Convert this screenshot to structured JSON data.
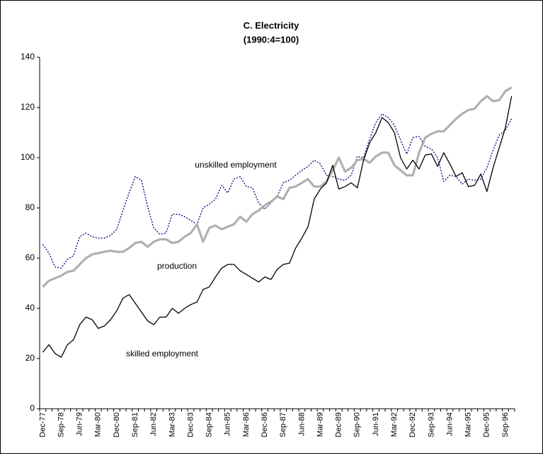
{
  "chart_data": {
    "type": "line",
    "title": "C. Electricity",
    "subtitle": "(1990:4=100)",
    "categories": [
      "Dec-77",
      null,
      null,
      "Sep-78",
      null,
      null,
      "Jun-79",
      null,
      null,
      "Mar-80",
      null,
      null,
      "Dec-80",
      null,
      null,
      "Sep-81",
      null,
      null,
      "Jun-82",
      null,
      null,
      "Mar-83",
      null,
      null,
      "Dec-83",
      null,
      null,
      "Sep-84",
      null,
      null,
      "Jun-85",
      null,
      null,
      "Mar-86",
      null,
      null,
      "Dec-86",
      null,
      null,
      "Sep-87",
      null,
      null,
      "Jun-88",
      null,
      null,
      "Mar-89",
      null,
      null,
      "Dec-89",
      null,
      null,
      "Sep-90",
      null,
      null,
      "Jun-91",
      null,
      null,
      "Mar-92",
      null,
      null,
      "Dec-92",
      null,
      null,
      "Sep-93",
      null,
      null,
      "Jun-94",
      null,
      null,
      "Mar-95",
      null,
      null,
      "Dec-95",
      null,
      null,
      "Sep-96",
      null
    ],
    "series": [
      {
        "name": "unskilled employment",
        "color": "#000080",
        "style": "dotted",
        "values": [
          65.5,
          62,
          56.5,
          56,
          59.5,
          61,
          68.5,
          70,
          68.5,
          68,
          68,
          69,
          71.5,
          79,
          86,
          92.5,
          91,
          80.5,
          72,
          69.5,
          70,
          77.5,
          77.5,
          76.5,
          75,
          73.5,
          80,
          81.5,
          83.5,
          89,
          86,
          91.5,
          92.5,
          88.5,
          88,
          82,
          79.5,
          82,
          84.5,
          90,
          91,
          93,
          95,
          96.5,
          99,
          97.5,
          93,
          92.5,
          91.5,
          91,
          93,
          100.5,
          100,
          107.5,
          114,
          117.5,
          116,
          113,
          107,
          101.5,
          108,
          108.5,
          104.5,
          103.5,
          100,
          90.5,
          93,
          92.5,
          89.5,
          91.5,
          91,
          91.5,
          96,
          103,
          109,
          111,
          115.5
        ]
      },
      {
        "name": "production",
        "color": "#b0b0b0",
        "style": "thick",
        "values": [
          48.5,
          51,
          52,
          53,
          54.5,
          55,
          57.5,
          60,
          61.5,
          62,
          62.5,
          63,
          62.5,
          62.5,
          64,
          66,
          66.5,
          64.5,
          66.5,
          67.5,
          67.5,
          66,
          66.5,
          68.5,
          70,
          73.5,
          66.5,
          72,
          73,
          71.5,
          72.5,
          73.5,
          76.5,
          74.5,
          77.5,
          79,
          81,
          82.5,
          84.5,
          83.5,
          88,
          88.5,
          90,
          91.5,
          88.5,
          88.5,
          90.5,
          95,
          100,
          94.5,
          96,
          99,
          99.5,
          98,
          100.5,
          102,
          102,
          97,
          95,
          93,
          93,
          102,
          108,
          109.5,
          110.5,
          110.5,
          113,
          115.5,
          117.5,
          119,
          119.5,
          122.5,
          124.5,
          122.5,
          123,
          126.5,
          128
        ]
      },
      {
        "name": "skilled employment",
        "color": "#000000",
        "style": "solid",
        "values": [
          22.5,
          25.5,
          22,
          20.5,
          25.5,
          27.5,
          33.5,
          36.5,
          35.5,
          32,
          33,
          35.5,
          39,
          44,
          45.5,
          42,
          38.5,
          35,
          33.5,
          36.5,
          36.5,
          40,
          38,
          40,
          41.5,
          42.5,
          47.5,
          48.5,
          52.5,
          56,
          57.5,
          57.5,
          55,
          53.5,
          52,
          50.5,
          52.5,
          51.5,
          55.5,
          57.5,
          58,
          64,
          68,
          72.5,
          83.5,
          87.5,
          90,
          97,
          87.5,
          88.5,
          90,
          88,
          99,
          106,
          110,
          116,
          114,
          110,
          100,
          95.5,
          99,
          95.5,
          101,
          101.5,
          96.5,
          102,
          97.5,
          92.5,
          94,
          88.5,
          89,
          93.5,
          86.5,
          96,
          104,
          112,
          124.5
        ]
      }
    ],
    "ylim": [
      0,
      140
    ],
    "yticks": [
      0,
      20,
      40,
      60,
      80,
      100,
      120,
      140
    ],
    "grid": false
  }
}
